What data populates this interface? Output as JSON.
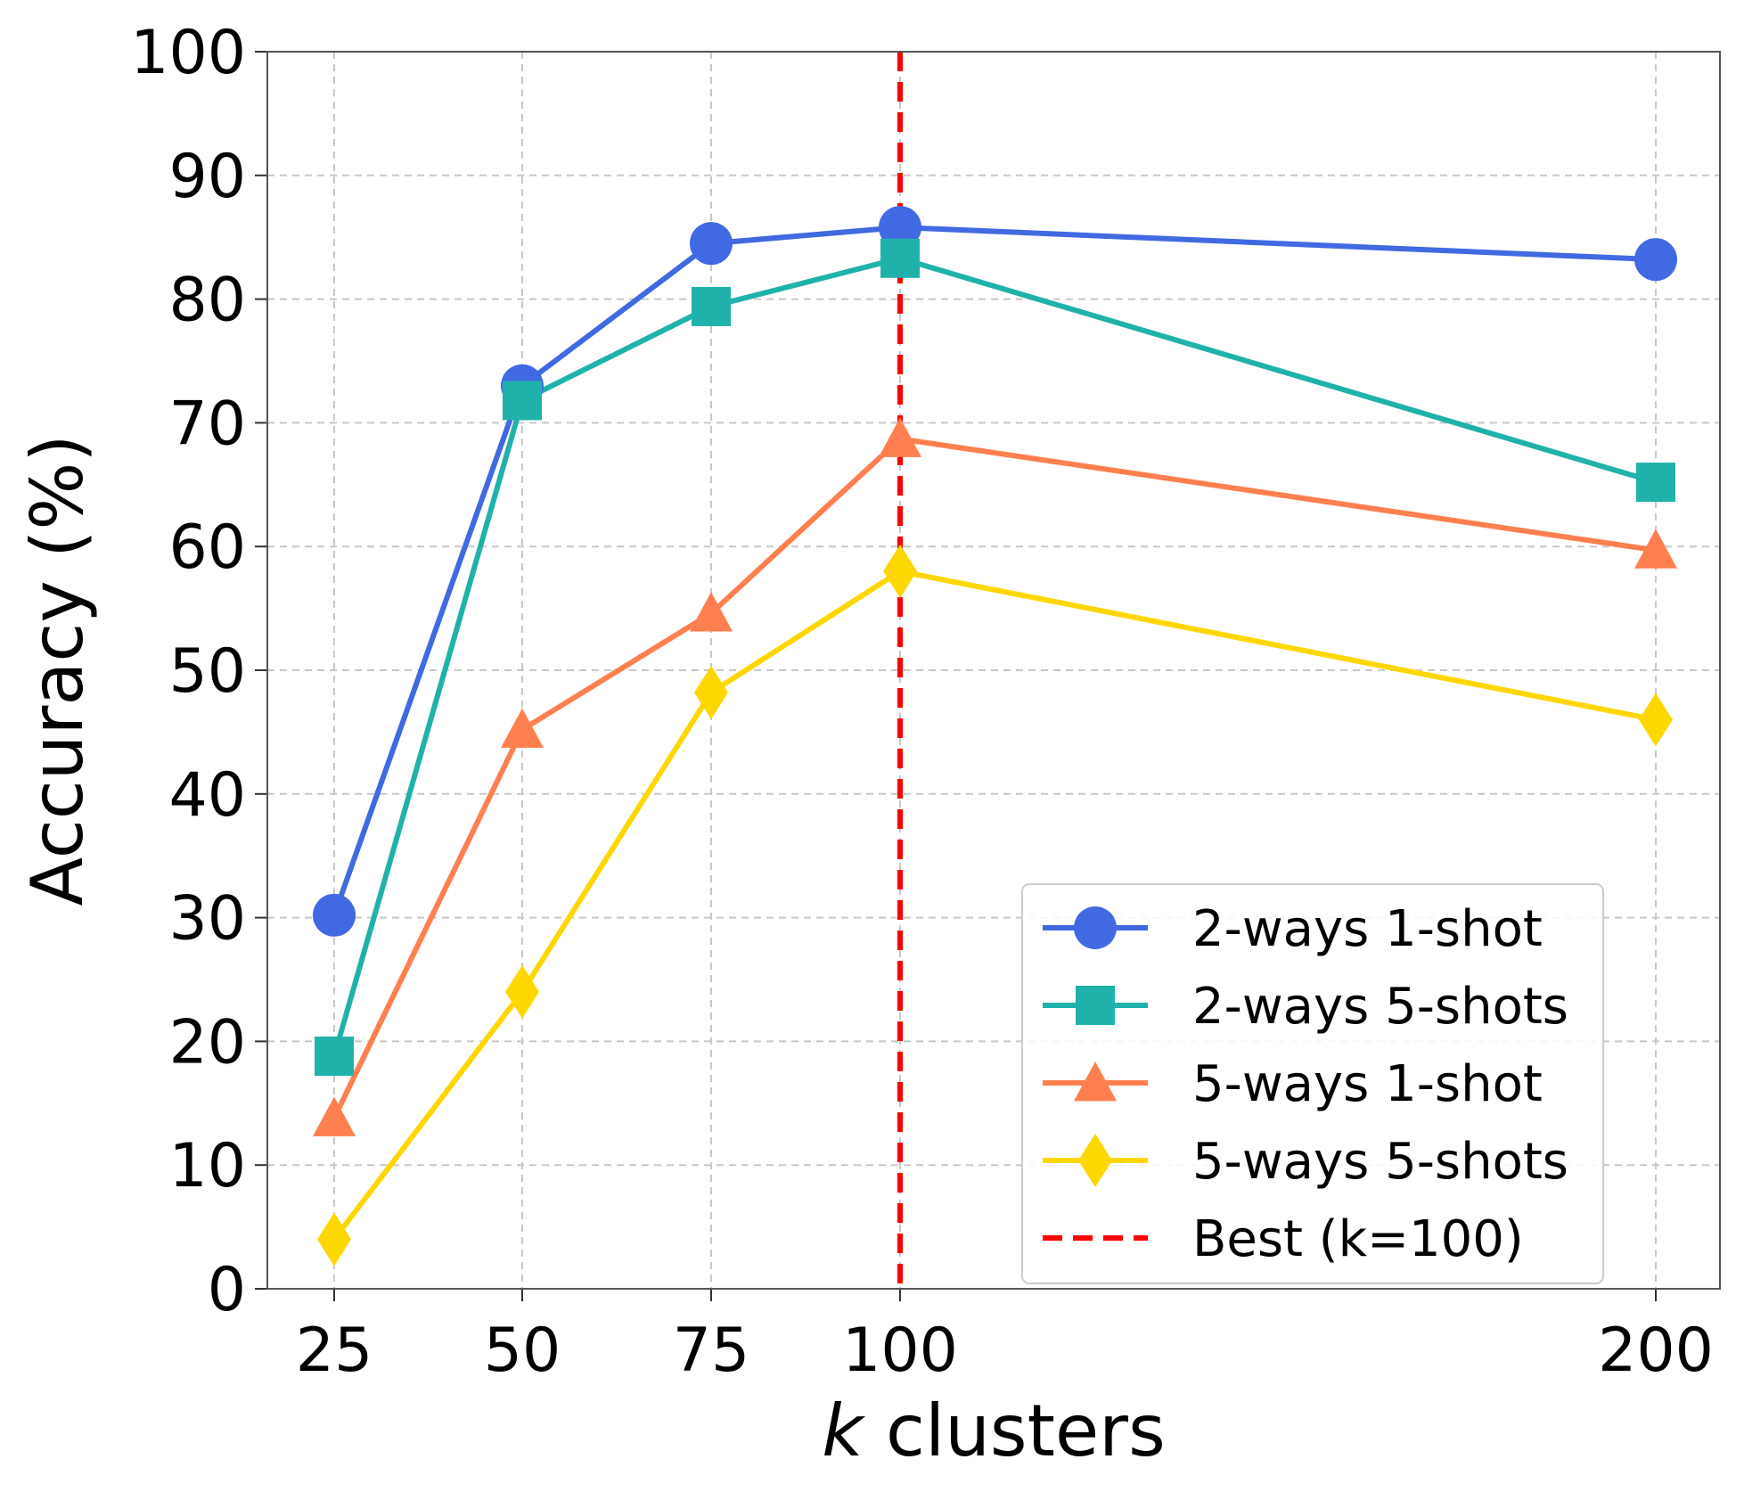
{
  "chart_data": {
    "type": "line",
    "title": "",
    "xlabel_var": "k",
    "xlabel_rest": " clusters",
    "ylabel": "Accuracy (%)",
    "x": [
      25,
      50,
      75,
      100,
      200
    ],
    "x_tick_labels": [
      "25",
      "50",
      "75",
      "100",
      "200"
    ],
    "ylim": [
      0,
      100
    ],
    "y_ticks": [
      0,
      10,
      20,
      30,
      40,
      50,
      60,
      70,
      80,
      90,
      100
    ],
    "grid": true,
    "legend_position": "lower-right",
    "series": [
      {
        "name": "2-ways 1-shot",
        "color": "#4169E1",
        "marker": "circle",
        "values": [
          30.2,
          73.0,
          84.5,
          85.8,
          83.2
        ]
      },
      {
        "name": "2-ways 5-shots",
        "color": "#20B2AA",
        "marker": "square",
        "values": [
          18.8,
          71.8,
          79.4,
          83.3,
          65.2
        ]
      },
      {
        "name": "5-ways 1-shot",
        "color": "#FF7F50",
        "marker": "triangle",
        "values": [
          13.8,
          45.2,
          54.6,
          68.7,
          59.7
        ]
      },
      {
        "name": "5-ways 5-shots",
        "color": "#FFD700",
        "marker": "diamond",
        "values": [
          4.0,
          24.0,
          48.2,
          58.0,
          46.0
        ]
      }
    ],
    "reference_line": {
      "name": "Best (k=100)",
      "x": 100,
      "color": "#FF0000",
      "style": "dashed"
    }
  }
}
